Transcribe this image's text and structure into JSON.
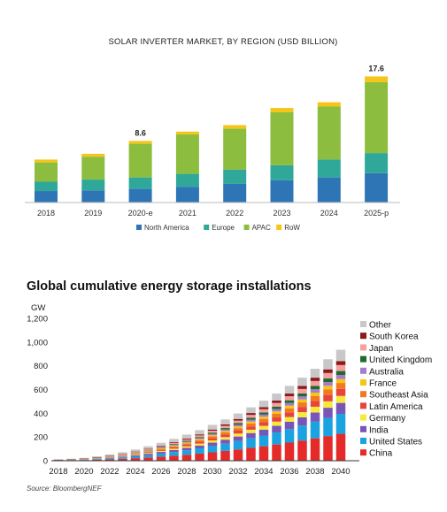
{
  "chart_data": [
    {
      "type": "bar",
      "stacked": true,
      "title": "SOLAR INVERTER MARKET, BY REGION (USD BILLION)",
      "categories": [
        "2018",
        "2019",
        "2020-e",
        "2021",
        "2022",
        "2023",
        "2024",
        "2025-p"
      ],
      "series": [
        {
          "name": "North America",
          "color": "#2e75b6",
          "values": [
            1.6,
            1.7,
            1.9,
            2.2,
            2.6,
            3.1,
            3.5,
            4.1
          ]
        },
        {
          "name": "Europe",
          "color": "#2fa89a",
          "values": [
            1.3,
            1.5,
            1.6,
            1.8,
            2.0,
            2.1,
            2.5,
            2.8
          ]
        },
        {
          "name": "APAC",
          "color": "#8cbd3f",
          "values": [
            2.7,
            3.2,
            4.7,
            5.5,
            5.7,
            7.4,
            7.4,
            9.9
          ]
        },
        {
          "name": "RoW",
          "color": "#f5c518",
          "values": [
            0.4,
            0.4,
            0.4,
            0.4,
            0.5,
            0.6,
            0.6,
            0.8
          ]
        }
      ],
      "data_labels": [
        {
          "category": "2020-e",
          "text": "8.6"
        },
        {
          "category": "2025-p",
          "text": "17.6"
        }
      ],
      "legend_position": "bottom",
      "grid": false
    },
    {
      "type": "bar",
      "stacked": true,
      "title": "Global cumulative energy storage installations",
      "ylabel": "GW",
      "ylim": [
        0,
        1200
      ],
      "yticks": [
        "0",
        "200",
        "400",
        "600",
        "800",
        "1,000",
        "1,200"
      ],
      "xticks": [
        "2018",
        "2020",
        "2022",
        "2024",
        "2026",
        "2028",
        "2030",
        "2032",
        "2034",
        "2036",
        "2038",
        "2040"
      ],
      "x": [
        2018,
        2019,
        2020,
        2021,
        2022,
        2023,
        2024,
        2025,
        2026,
        2027,
        2028,
        2029,
        2030,
        2031,
        2032,
        2033,
        2034,
        2035,
        2036,
        2037,
        2038,
        2039,
        2040
      ],
      "totals": [
        9,
        13,
        19,
        30,
        44,
        60,
        80,
        102,
        128,
        156,
        187,
        222,
        263,
        306,
        352,
        402,
        452,
        507,
        566,
        630,
        700,
        770,
        840
      ],
      "gray_tops": [
        12,
        17,
        24,
        37,
        53,
        72,
        95,
        122,
        151,
        184,
        220,
        258,
        302,
        348,
        398,
        450,
        506,
        566,
        631,
        700,
        775,
        855,
        935
      ],
      "share": {
        "China": 0.27,
        "United States": 0.2,
        "India": 0.11,
        "Germany": 0.07,
        "Latin America": 0.07,
        "Southeast Asia": 0.06,
        "France": 0.04,
        "Australia": 0.04,
        "United Kingdom": 0.04,
        "Japan": 0.06,
        "South Korea": 0.04
      },
      "series_order": [
        "China",
        "United States",
        "India",
        "Germany",
        "Latin America",
        "Southeast Asia",
        "France",
        "Australia",
        "United Kingdom",
        "Japan",
        "South Korea",
        "Other"
      ],
      "legend": [
        {
          "name": "Other",
          "color": "#c8c8c8"
        },
        {
          "name": "South Korea",
          "color": "#8b1a1a"
        },
        {
          "name": "Japan",
          "color": "#f4a0a0"
        },
        {
          "name": "United Kingdom",
          "color": "#1e6b2e"
        },
        {
          "name": "Australia",
          "color": "#a67cd0"
        },
        {
          "name": "France",
          "color": "#f6c515"
        },
        {
          "name": "Southeast Asia",
          "color": "#f07a22"
        },
        {
          "name": "Latin America",
          "color": "#e8443c"
        },
        {
          "name": "Germany",
          "color": "#f5ea3c"
        },
        {
          "name": "India",
          "color": "#7a55b8"
        },
        {
          "name": "United States",
          "color": "#1aa3e0"
        },
        {
          "name": "China",
          "color": "#e52a2a"
        }
      ],
      "source": "Source: BloombergNEF"
    }
  ]
}
